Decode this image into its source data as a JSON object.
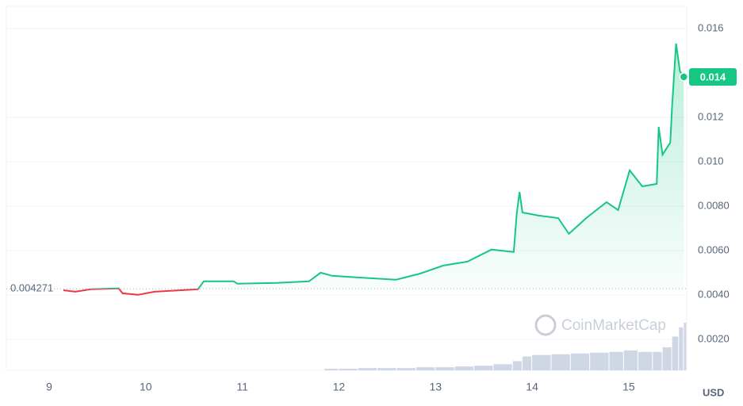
{
  "chart_data": {
    "type": "line",
    "x": [
      9.148,
      9.27,
      9.43,
      9.72,
      9.76,
      9.92,
      10.09,
      10.54,
      10.6,
      10.91,
      10.95,
      11.36,
      11.69,
      11.81,
      11.93,
      12.18,
      12.59,
      12.84,
      13.08,
      13.33,
      13.58,
      13.81,
      13.84,
      13.87,
      13.9,
      14.07,
      14.27,
      14.38,
      14.56,
      14.77,
      14.89,
      15.01,
      15.14,
      15.29,
      15.31,
      15.35,
      15.43,
      15.45,
      15.49,
      15.53,
      15.57
    ],
    "values": [
      0.00421,
      0.00414,
      0.00425,
      0.00429,
      0.00407,
      0.004,
      0.00414,
      0.00425,
      0.00461,
      0.00461,
      0.0045,
      0.00454,
      0.00461,
      0.005,
      0.00486,
      0.00479,
      0.00468,
      0.00496,
      0.00532,
      0.0055,
      0.00604,
      0.00593,
      0.00764,
      0.00864,
      0.00771,
      0.00757,
      0.00746,
      0.00675,
      0.00746,
      0.00818,
      0.00782,
      0.00961,
      0.00889,
      0.009,
      0.01157,
      0.01032,
      0.01086,
      0.01257,
      0.01532,
      0.01407,
      0.01382
    ],
    "up_color": "#16c784",
    "down_color": "#ea3943",
    "baseline": {
      "value": 0.004271,
      "label": "0.004271"
    },
    "last_price_label": "0.014",
    "xlim": [
      8.557,
      15.6
    ],
    "xticks": [
      9,
      10,
      11,
      12,
      13,
      14,
      15
    ],
    "ylim": [
      0.0006,
      0.017
    ],
    "yticks": [
      0.016,
      {
        "value": 0.012,
        "label": "0.012"
      },
      {
        "value": 0.01,
        "label": "0.010"
      },
      {
        "value": 0.008,
        "label": "0.0080"
      },
      {
        "value": 0.006,
        "label": "0.0060"
      },
      {
        "value": 0.004,
        "label": "0.0040"
      },
      {
        "value": 0.002,
        "label": "0.0020"
      }
    ],
    "grid": true,
    "currency": "USD",
    "watermark": "CoinMarketCap",
    "volume": {
      "color": "#cfd6e4",
      "x": [
        11.85,
        12.0,
        12.2,
        12.4,
        12.6,
        12.8,
        13.0,
        13.2,
        13.4,
        13.6,
        13.8,
        13.9,
        14.0,
        14.2,
        14.4,
        14.6,
        14.8,
        14.95,
        15.1,
        15.25,
        15.35,
        15.45,
        15.52,
        15.57
      ],
      "values": [
        2,
        2,
        3,
        3,
        3,
        4,
        4,
        5,
        6,
        8,
        12,
        18,
        20,
        21,
        22,
        23,
        24,
        26,
        24,
        24,
        30,
        44,
        56,
        62
      ]
    }
  }
}
